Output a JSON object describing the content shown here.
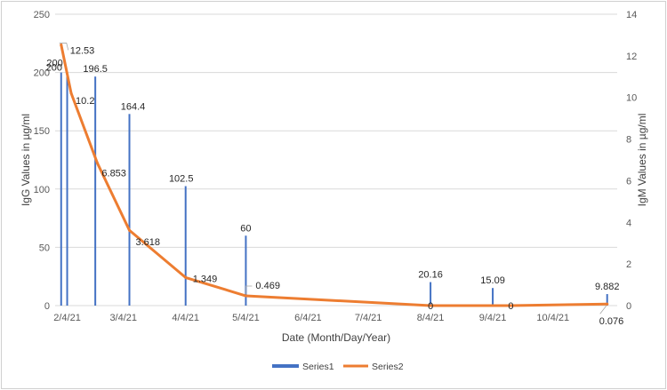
{
  "chart_data": {
    "type": "bar+line",
    "x_dates": [
      "2021-02-01",
      "2021-02-04",
      "2021-02-24",
      "2021-03-22",
      "2021-05-01",
      "2021-08-04",
      "2021-09-04",
      "2021-10-31"
    ],
    "x_tick_labels": [
      "2/4/21",
      "3/4/21",
      "4/4/21",
      "5/4/21",
      "6/4/21",
      "7/4/21",
      "8/4/21",
      "9/4/21",
      "10/4/21"
    ],
    "x_tick_dates": [
      "2021-02-04",
      "2021-03-04",
      "2021-04-04",
      "2021-05-04",
      "2021-06-04",
      "2021-07-04",
      "2021-08-04",
      "2021-09-04",
      "2021-10-04"
    ],
    "x_range": [
      "2021-01-29",
      "2021-11-05"
    ],
    "xlabel": "Date (Month/Day/Year)",
    "ylabel": "IgG Values in µg/ml",
    "ylabel_right": "IgM Values in µg/ml",
    "ylim": [
      0,
      250
    ],
    "y_ticks": [
      0,
      50,
      100,
      150,
      200,
      250
    ],
    "ylim_right": [
      0,
      14
    ],
    "y_ticks_right": [
      0,
      2,
      4,
      6,
      8,
      10,
      12,
      14
    ],
    "series": [
      {
        "name": "Series1",
        "type": "bar",
        "axis": "left",
        "color": "#4472c4",
        "bars": [
          {
            "date": "2021-02-01",
            "value": 200,
            "label": "200"
          },
          {
            "date": "2021-02-04",
            "value": 200,
            "label": "200"
          },
          {
            "date": "2021-02-18",
            "value": 196.5,
            "label": "196.5"
          },
          {
            "date": "2021-03-07",
            "value": 164.4,
            "label": "164.4"
          },
          {
            "date": "2021-04-04",
            "value": 102.5,
            "label": "102.5"
          },
          {
            "date": "2021-05-04",
            "value": 60,
            "label": "60"
          },
          {
            "date": "2021-08-04",
            "value": 20.16,
            "label": "20.16"
          },
          {
            "date": "2021-09-04",
            "value": 15.09,
            "label": "15.09"
          },
          {
            "date": "2021-10-31",
            "value": 9.882,
            "label": "9.882"
          }
        ]
      },
      {
        "name": "Series2",
        "type": "line",
        "axis": "right",
        "color": "#ed7d31",
        "points": [
          {
            "date": "2021-02-01",
            "value": 12.53,
            "label": "12.53"
          },
          {
            "date": "2021-02-06",
            "value": 10.2,
            "label": "10.2"
          },
          {
            "date": "2021-02-19",
            "value": 6.853,
            "label": "6.853"
          },
          {
            "date": "2021-03-07",
            "value": 3.618,
            "label": "3.618"
          },
          {
            "date": "2021-04-04",
            "value": 1.349,
            "label": "1.349"
          },
          {
            "date": "2021-05-04",
            "value": 0.469,
            "label": "0.469"
          },
          {
            "date": "2021-08-04",
            "value": 0,
            "label": "0"
          },
          {
            "date": "2021-09-13",
            "value": 0,
            "label": "0"
          },
          {
            "date": "2021-10-31",
            "value": 0.076,
            "label": "0.076"
          }
        ]
      }
    ],
    "legend": {
      "position": "bottom",
      "entries": [
        "Series1",
        "Series2"
      ]
    },
    "grid": true
  }
}
